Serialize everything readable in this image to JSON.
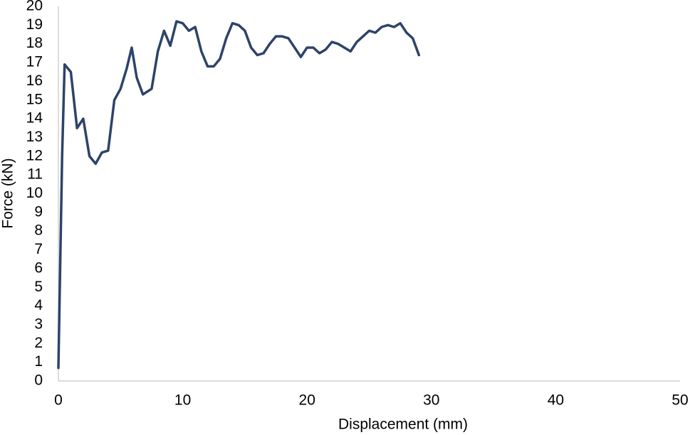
{
  "chart_data": {
    "type": "line",
    "x_label": "Displacement (mm)",
    "y_label": "Force (kN)",
    "x": [
      0,
      0.3,
      0.5,
      1.0,
      1.5,
      2.0,
      2.5,
      3.0,
      3.5,
      4.0,
      4.5,
      5.0,
      5.5,
      5.9,
      6.3,
      6.8,
      7.5,
      8.0,
      8.5,
      9.0,
      9.5,
      10.0,
      10.5,
      11.0,
      11.5,
      12.0,
      12.5,
      13.0,
      13.5,
      14.0,
      14.5,
      15.0,
      15.5,
      16.0,
      16.5,
      17.0,
      17.5,
      18.0,
      18.5,
      19.0,
      19.5,
      20.0,
      20.5,
      21.0,
      21.5,
      22.0,
      22.5,
      23.0,
      23.5,
      24.0,
      24.5,
      25.0,
      25.5,
      26.0,
      26.5,
      27.0,
      27.5,
      28.0,
      28.5,
      29.0
    ],
    "values": [
      0.7,
      12,
      16.9,
      16.5,
      13.5,
      14.0,
      12.0,
      11.6,
      12.2,
      12.3,
      15.0,
      15.6,
      16.7,
      17.8,
      16.2,
      15.3,
      15.6,
      17.6,
      18.7,
      17.9,
      19.2,
      19.1,
      18.7,
      18.9,
      17.6,
      16.8,
      16.8,
      17.2,
      18.3,
      19.1,
      19.0,
      18.7,
      17.8,
      17.4,
      17.5,
      18.0,
      18.4,
      18.4,
      18.3,
      17.8,
      17.3,
      17.8,
      17.8,
      17.5,
      17.7,
      18.1,
      18.0,
      17.8,
      17.6,
      18.1,
      18.4,
      18.7,
      18.6,
      18.9,
      19.0,
      18.9,
      19.1,
      18.6,
      18.3,
      17.4
    ],
    "color": "#2d4369",
    "xlim": [
      0,
      50
    ],
    "xticks": [
      0,
      10,
      20,
      30,
      40,
      50
    ],
    "ylim": [
      0,
      20
    ],
    "yticks": [
      0,
      1,
      2,
      3,
      4,
      5,
      6,
      7,
      8,
      9,
      10,
      11,
      12,
      13,
      14,
      15,
      16,
      17,
      18,
      19,
      20
    ]
  }
}
